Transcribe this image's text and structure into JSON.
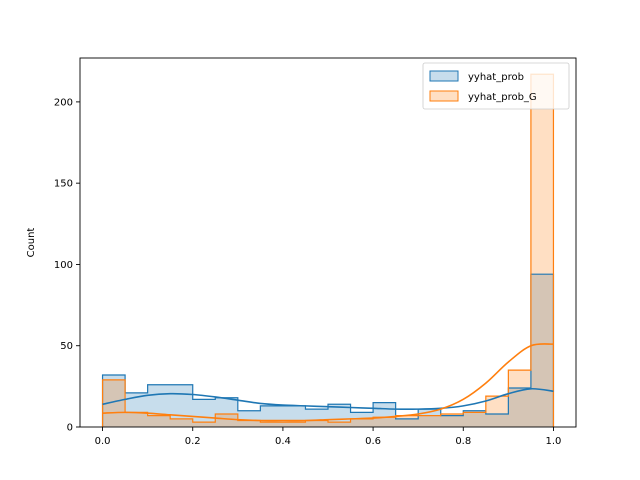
{
  "chart_data": {
    "type": "bar",
    "subtype": "histogram-step-with-kde",
    "title": "",
    "xlabel": "",
    "ylabel": "Count",
    "xlim": [
      -0.05,
      1.05
    ],
    "ylim": [
      0,
      227
    ],
    "grid": false,
    "legend_position": "upper right",
    "x_ticks": [
      "0.0",
      "0.2",
      "0.4",
      "0.6",
      "0.8",
      "1.0"
    ],
    "y_ticks": [
      "0",
      "50",
      "100",
      "150",
      "200"
    ],
    "bin_width": 0.05,
    "bin_edges": [
      0.0,
      0.05,
      0.1,
      0.15,
      0.2,
      0.25,
      0.3,
      0.35,
      0.4,
      0.45,
      0.5,
      0.55,
      0.6,
      0.65,
      0.7,
      0.75,
      0.8,
      0.85,
      0.9,
      0.95,
      1.0
    ],
    "series": [
      {
        "name": "yyhat_prob",
        "color": "#1f77b4",
        "values": [
          32,
          21,
          26,
          26,
          17,
          18,
          10,
          13,
          13,
          11,
          14,
          9,
          15,
          5,
          11,
          7,
          10,
          8,
          24,
          94
        ],
        "kde": [
          [
            0.0,
            14
          ],
          [
            0.05,
            17
          ],
          [
            0.1,
            19.5
          ],
          [
            0.15,
            20.5
          ],
          [
            0.2,
            20
          ],
          [
            0.25,
            18.5
          ],
          [
            0.3,
            16.5
          ],
          [
            0.35,
            14.5
          ],
          [
            0.4,
            13.5
          ],
          [
            0.45,
            13
          ],
          [
            0.5,
            12.5
          ],
          [
            0.55,
            12
          ],
          [
            0.6,
            11.5
          ],
          [
            0.65,
            11
          ],
          [
            0.7,
            11
          ],
          [
            0.75,
            11.5
          ],
          [
            0.8,
            13
          ],
          [
            0.85,
            16
          ],
          [
            0.9,
            20.5
          ],
          [
            0.95,
            23.5
          ],
          [
            1.0,
            22
          ]
        ]
      },
      {
        "name": "yyhat_prob_G",
        "color": "#ff7f0e",
        "values": [
          29,
          9,
          7,
          5,
          3,
          8,
          4,
          3,
          3,
          4,
          3,
          5,
          6,
          7,
          7,
          8,
          9,
          19,
          35,
          217
        ],
        "kde": [
          [
            0.0,
            8.5
          ],
          [
            0.05,
            9
          ],
          [
            0.1,
            8.5
          ],
          [
            0.15,
            7.5
          ],
          [
            0.2,
            6.5
          ],
          [
            0.25,
            5.5
          ],
          [
            0.3,
            4.5
          ],
          [
            0.35,
            4
          ],
          [
            0.4,
            4
          ],
          [
            0.45,
            4
          ],
          [
            0.5,
            4.5
          ],
          [
            0.55,
            5
          ],
          [
            0.6,
            5.5
          ],
          [
            0.65,
            6.5
          ],
          [
            0.7,
            8
          ],
          [
            0.75,
            11
          ],
          [
            0.8,
            17
          ],
          [
            0.85,
            27
          ],
          [
            0.9,
            40
          ],
          [
            0.95,
            50
          ],
          [
            1.0,
            51
          ]
        ]
      }
    ]
  }
}
